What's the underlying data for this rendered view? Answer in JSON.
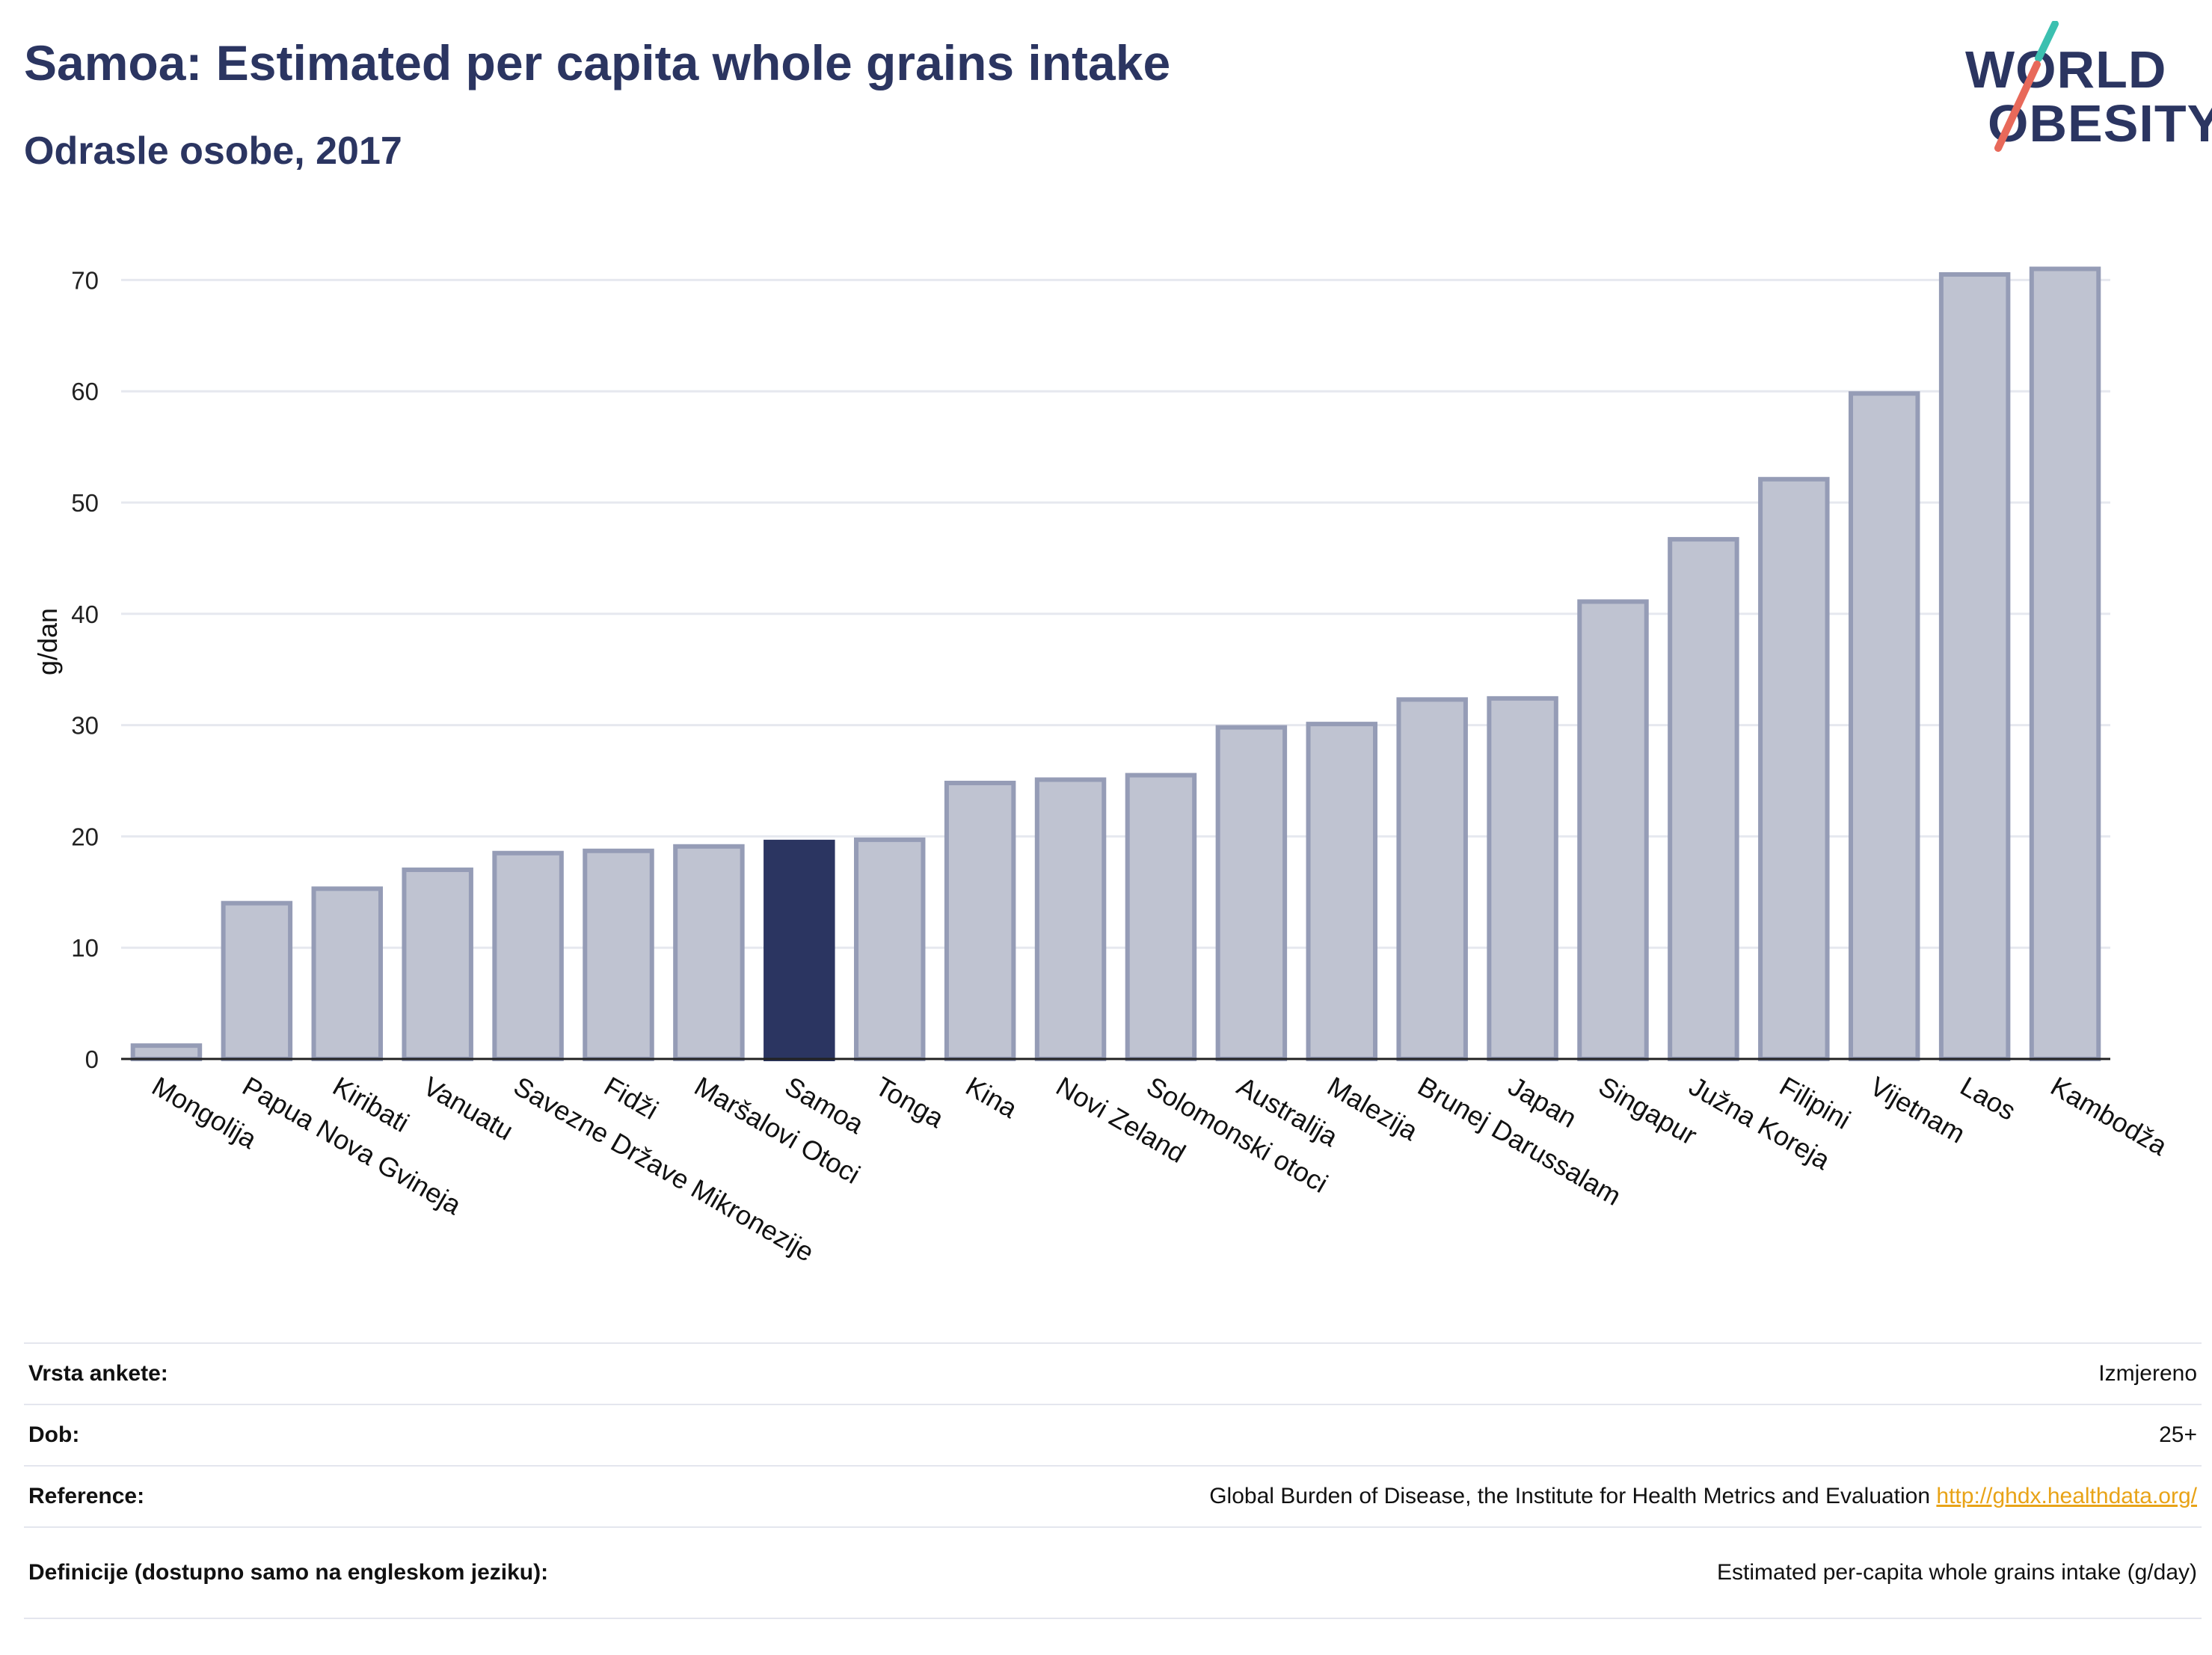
{
  "header": {
    "title": "Samoa: Estimated per capita whole grains intake",
    "subtitle": "Odrasle osobe, 2017"
  },
  "logo": {
    "line1": "WORLD",
    "line2": "OBESITY"
  },
  "colors": {
    "highlight": "#2b3561",
    "bar_fill": "#bfc3d1",
    "bar_stroke": "#959cb6",
    "grid": "#e6e8ef",
    "title": "#2b3561",
    "link": "#e8a317",
    "logo_teal": "#3cc0b0",
    "logo_coral": "#e8695a"
  },
  "chart_data": {
    "type": "bar",
    "title": "Samoa: Estimated per capita whole grains intake",
    "subtitle": "Odrasle osobe, 2017",
    "xlabel": "",
    "ylabel": "g/dan",
    "ylim": [
      0,
      75
    ],
    "yticks": [
      0,
      10,
      20,
      30,
      40,
      50,
      60,
      70
    ],
    "grid": true,
    "highlight": "Samoa",
    "categories": [
      "Mongolija",
      "Papua Nova Gvineja",
      "Kiribati",
      "Vanuatu",
      "Savezne Države Mikronezije",
      "Fidži",
      "Maršalovi Otoci",
      "Samoa",
      "Tonga",
      "Kina",
      "Novi Zeland",
      "Solomonski otoci",
      "Australija",
      "Malezija",
      "Brunej Darussalam",
      "Japan",
      "Singapur",
      "Južna Koreja",
      "Filipini",
      "Vijetnam",
      "Laos",
      "Kambodža"
    ],
    "values": [
      1.2,
      14.0,
      15.3,
      17.0,
      18.5,
      18.7,
      19.1,
      19.5,
      19.7,
      24.8,
      25.1,
      25.5,
      29.8,
      30.1,
      32.3,
      32.4,
      41.1,
      46.7,
      52.1,
      59.8,
      70.5,
      71.0
    ]
  },
  "info": [
    {
      "key": "Vrsta ankete:",
      "value": "Izmjereno"
    },
    {
      "key": "Dob:",
      "value": "25+"
    },
    {
      "key": "Reference:",
      "value": "Global Burden of Disease, the Institute for Health Metrics and Evaluation",
      "link": "http://ghdx.healthdata.org/"
    },
    {
      "key": "Definicije (dostupno samo na engleskom jeziku):",
      "value": "Estimated per-capita whole grains intake (g/day)"
    }
  ]
}
